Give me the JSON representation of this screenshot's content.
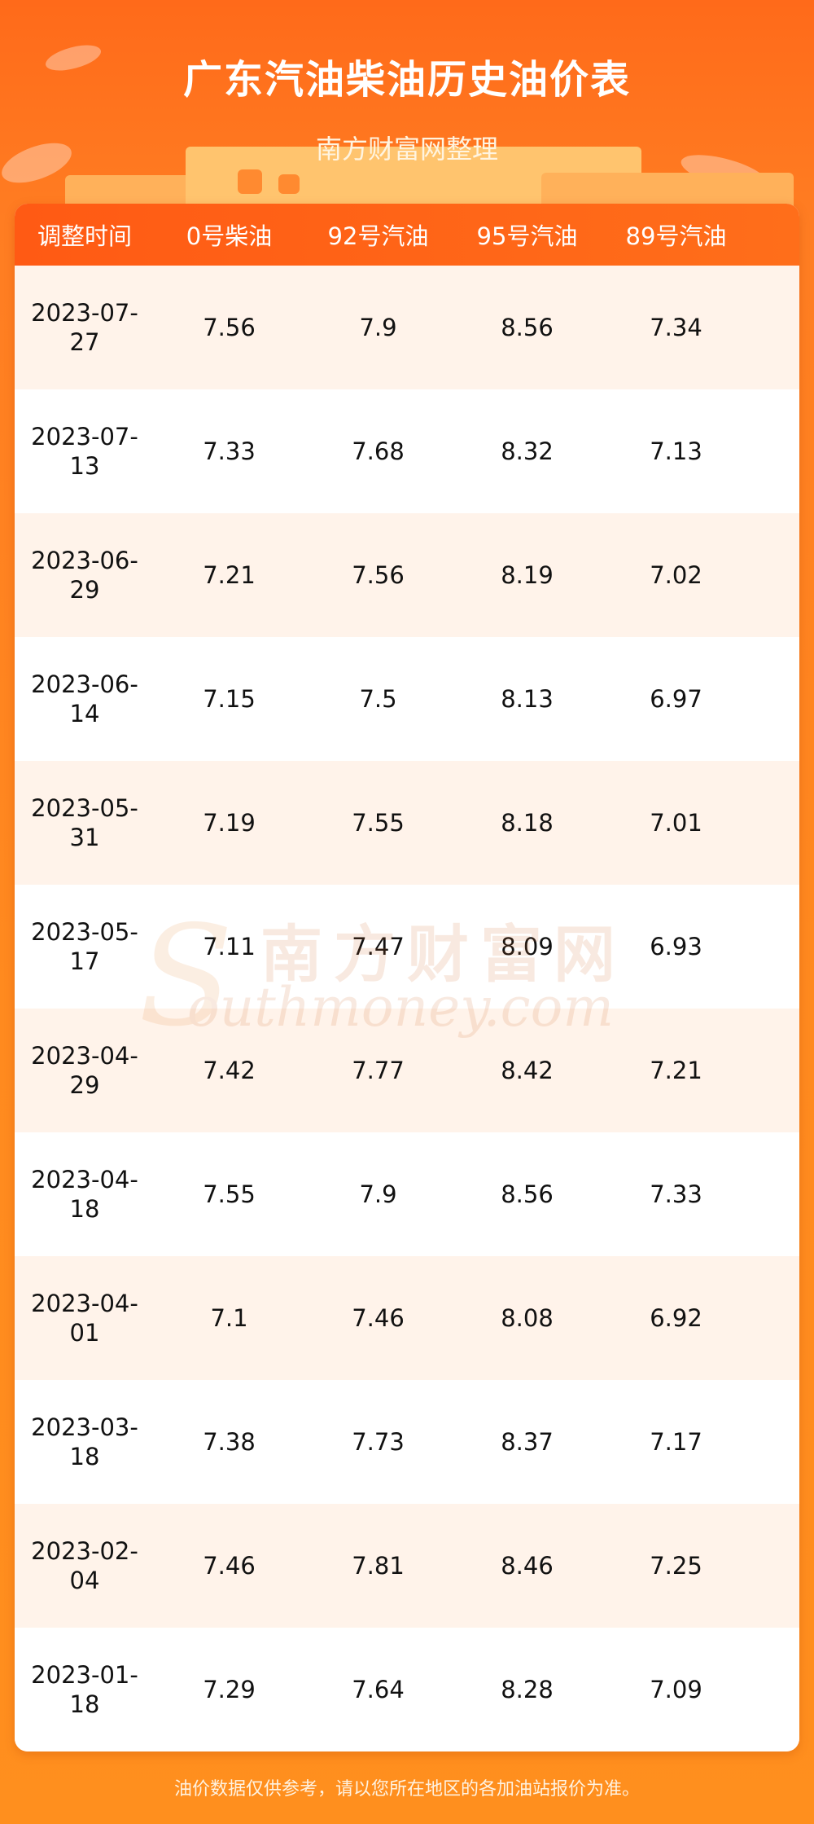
{
  "header": {
    "title": "广东汽油柴油历史油价表",
    "subtitle": "南方财富网整理"
  },
  "table": {
    "columns": [
      "调整时间",
      "0号柴油",
      "92号汽油",
      "95号汽油",
      "89号汽油"
    ],
    "rows": [
      {
        "date_a": "2023-07-",
        "date_b": "27",
        "d0": "7.56",
        "g92": "7.9",
        "g95": "8.56",
        "g89": "7.34"
      },
      {
        "date_a": "2023-07-",
        "date_b": "13",
        "d0": "7.33",
        "g92": "7.68",
        "g95": "8.32",
        "g89": "7.13"
      },
      {
        "date_a": "2023-06-",
        "date_b": "29",
        "d0": "7.21",
        "g92": "7.56",
        "g95": "8.19",
        "g89": "7.02"
      },
      {
        "date_a": "2023-06-",
        "date_b": "14",
        "d0": "7.15",
        "g92": "7.5",
        "g95": "8.13",
        "g89": "6.97"
      },
      {
        "date_a": "2023-05-",
        "date_b": "31",
        "d0": "7.19",
        "g92": "7.55",
        "g95": "8.18",
        "g89": "7.01"
      },
      {
        "date_a": "2023-05-",
        "date_b": "17",
        "d0": "7.11",
        "g92": "7.47",
        "g95": "8.09",
        "g89": "6.93"
      },
      {
        "date_a": "2023-04-",
        "date_b": "29",
        "d0": "7.42",
        "g92": "7.77",
        "g95": "8.42",
        "g89": "7.21"
      },
      {
        "date_a": "2023-04-",
        "date_b": "18",
        "d0": "7.55",
        "g92": "7.9",
        "g95": "8.56",
        "g89": "7.33"
      },
      {
        "date_a": "2023-04-",
        "date_b": "01",
        "d0": "7.1",
        "g92": "7.46",
        "g95": "8.08",
        "g89": "6.92"
      },
      {
        "date_a": "2023-03-",
        "date_b": "18",
        "d0": "7.38",
        "g92": "7.73",
        "g95": "8.37",
        "g89": "7.17"
      },
      {
        "date_a": "2023-02-",
        "date_b": "04",
        "d0": "7.46",
        "g92": "7.81",
        "g95": "8.46",
        "g89": "7.25"
      },
      {
        "date_a": "2023-01-",
        "date_b": "18",
        "d0": "7.29",
        "g92": "7.64",
        "g95": "8.28",
        "g89": "7.09"
      }
    ]
  },
  "watermark": {
    "cn": "南方财富网",
    "en_initial": "S",
    "en_rest": "outhmoney.com"
  },
  "footer": {
    "note": "油价数据仅供参考，请以您所在地区的各加油站报价为准。"
  },
  "colors": {
    "header_bg": "#ff6a1a",
    "row_alt": "#fff3ea",
    "row_plain": "#ffffff"
  }
}
